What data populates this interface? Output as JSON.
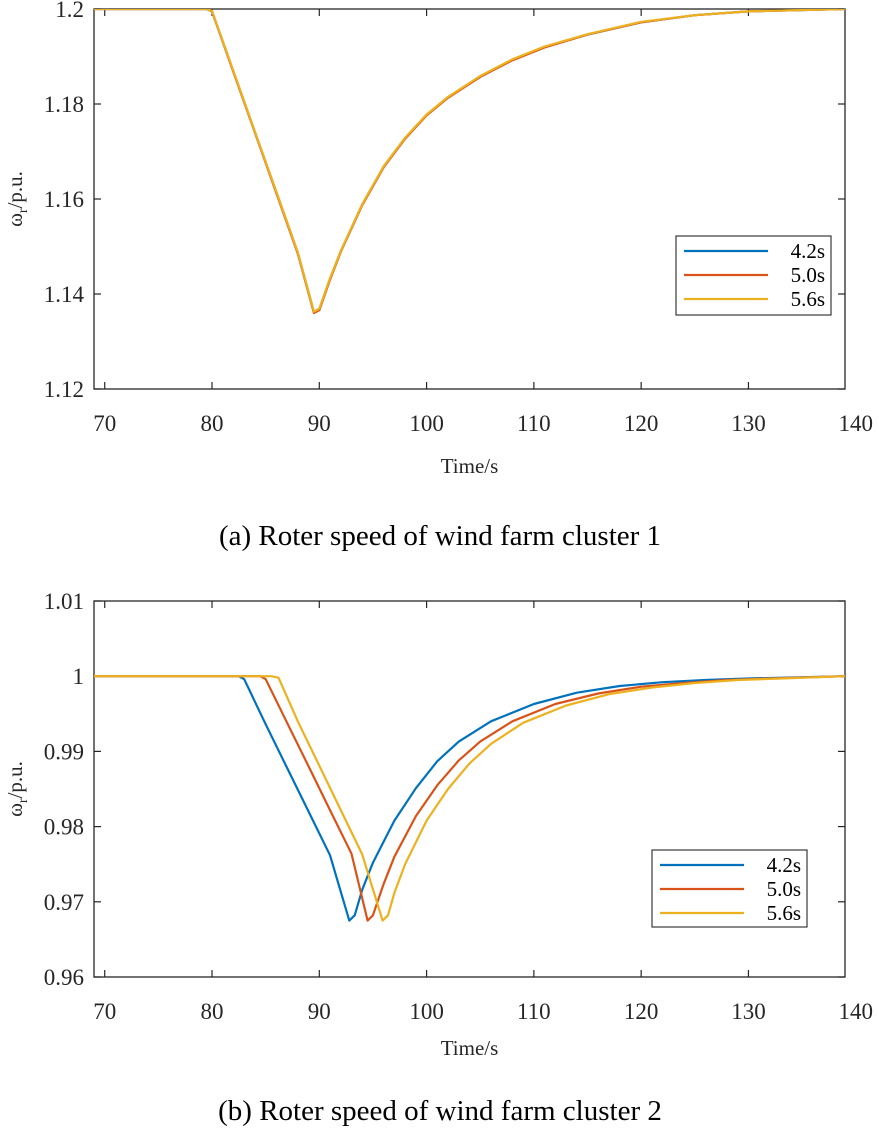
{
  "chart_data": [
    {
      "type": "line",
      "caption": "(a) Roter speed of wind farm cluster 1",
      "xlabel": "Time/s",
      "ylabel_main": "ω",
      "ylabel_sub": "r",
      "ylabel_tail": "/p.u.",
      "xlim": [
        69,
        139
      ],
      "ylim": [
        1.12,
        1.2
      ],
      "xticks": [
        70,
        80,
        90,
        100,
        110,
        120,
        130,
        140
      ],
      "yticks": [
        1.12,
        1.14,
        1.16,
        1.18,
        1.2
      ],
      "ytick_labels": [
        "1.12",
        "1.14",
        "1.16",
        "1.18",
        "1.2"
      ],
      "legend_position": "right-middle",
      "series": [
        {
          "name": "4.2s",
          "color": "#0072BD",
          "x": [
            69,
            79.5,
            80,
            82,
            84,
            86,
            88,
            89.5,
            90,
            91,
            92,
            94,
            96,
            98,
            100,
            102,
            105,
            108,
            111,
            115,
            120,
            125,
            130,
            139
          ],
          "y": [
            1.2,
            1.2,
            1.1995,
            1.1868,
            1.1741,
            1.1614,
            1.1487,
            1.1362,
            1.1368,
            1.1432,
            1.149,
            1.1588,
            1.1668,
            1.1728,
            1.1777,
            1.1814,
            1.1858,
            1.1893,
            1.192,
            1.1946,
            1.1972,
            1.1987,
            1.1995,
            1.2
          ]
        },
        {
          "name": "5.0s",
          "color": "#D95319",
          "x": [
            69,
            79.5,
            80,
            82,
            84,
            86,
            88,
            89.5,
            90,
            91,
            92,
            94,
            96,
            98,
            100,
            102,
            105,
            108,
            111,
            115,
            120,
            125,
            130,
            139
          ],
          "y": [
            1.2,
            1.2,
            1.1995,
            1.1867,
            1.174,
            1.1612,
            1.1485,
            1.136,
            1.1366,
            1.143,
            1.1489,
            1.1587,
            1.1667,
            1.1727,
            1.1776,
            1.1813,
            1.1857,
            1.1892,
            1.1919,
            1.1946,
            1.1972,
            1.1987,
            1.1995,
            1.2
          ]
        },
        {
          "name": "5.6s",
          "color": "#EDB120",
          "x": [
            69,
            79.5,
            80,
            82,
            84,
            86,
            88,
            89.5,
            90,
            91,
            92,
            94,
            96,
            98,
            100,
            102,
            105,
            108,
            111,
            115,
            120,
            125,
            130,
            139
          ],
          "y": [
            1.2,
            1.2,
            1.1996,
            1.1869,
            1.1742,
            1.1615,
            1.1488,
            1.1363,
            1.1369,
            1.1433,
            1.1491,
            1.1589,
            1.1669,
            1.1729,
            1.1778,
            1.1815,
            1.1859,
            1.1894,
            1.1921,
            1.1947,
            1.1973,
            1.1987,
            1.1995,
            1.2
          ]
        }
      ]
    },
    {
      "type": "line",
      "caption": "(b) Roter speed of wind farm cluster 2",
      "xlabel": "Time/s",
      "ylabel_main": "ω",
      "ylabel_sub": "r",
      "ylabel_tail": "/p.u.",
      "xlim": [
        69,
        139
      ],
      "ylim": [
        0.96,
        1.01
      ],
      "xticks": [
        70,
        80,
        90,
        100,
        110,
        120,
        130,
        140
      ],
      "yticks": [
        0.96,
        0.97,
        0.98,
        0.99,
        1.0,
        1.01
      ],
      "ytick_labels": [
        "0.96",
        "0.97",
        "0.98",
        "0.99",
        "1",
        "1.01"
      ],
      "legend_position": "right-lower",
      "series": [
        {
          "name": "4.2s",
          "color": "#0072BD",
          "x": [
            69,
            82.5,
            83,
            85,
            87,
            89,
            91,
            92.8,
            93.3,
            94,
            95,
            97,
            99,
            101,
            103,
            106,
            110,
            114,
            118,
            122,
            126,
            130,
            139
          ],
          "y": [
            1.0,
            1.0,
            0.9996,
            0.9936,
            0.9878,
            0.982,
            0.9762,
            0.9675,
            0.9682,
            0.9716,
            0.9752,
            0.9808,
            0.9851,
            0.9887,
            0.9913,
            0.994,
            0.9963,
            0.9978,
            0.9987,
            0.9992,
            0.9995,
            0.9997,
            1.0
          ]
        },
        {
          "name": "5.0s",
          "color": "#D95319",
          "x": [
            69,
            84.5,
            85,
            87,
            89,
            91,
            93,
            94.5,
            95,
            96,
            97,
            99,
            101,
            103,
            105,
            108,
            112,
            116,
            120,
            124,
            128,
            132,
            139
          ],
          "y": [
            1.0,
            1.0,
            0.9996,
            0.9938,
            0.988,
            0.9822,
            0.9764,
            0.9675,
            0.9682,
            0.9724,
            0.976,
            0.9814,
            0.9855,
            0.9888,
            0.9913,
            0.994,
            0.9963,
            0.9977,
            0.9986,
            0.9991,
            0.9995,
            0.9997,
            1.0
          ]
        },
        {
          "name": "5.6s",
          "color": "#EDB120",
          "x": [
            69,
            85.5,
            86.2,
            88,
            90,
            92,
            94,
            95.9,
            96.4,
            97,
            98,
            100,
            102,
            104,
            106,
            109,
            113,
            117,
            121,
            125,
            129,
            133,
            139
          ],
          "y": [
            1.0,
            1.0,
            0.9998,
            0.994,
            0.9881,
            0.9822,
            0.9763,
            0.9675,
            0.9682,
            0.9712,
            0.975,
            0.9808,
            0.985,
            0.9884,
            0.991,
            0.9938,
            0.9961,
            0.9976,
            0.9985,
            0.9991,
            0.9995,
            0.9997,
            1.0
          ]
        }
      ]
    }
  ]
}
